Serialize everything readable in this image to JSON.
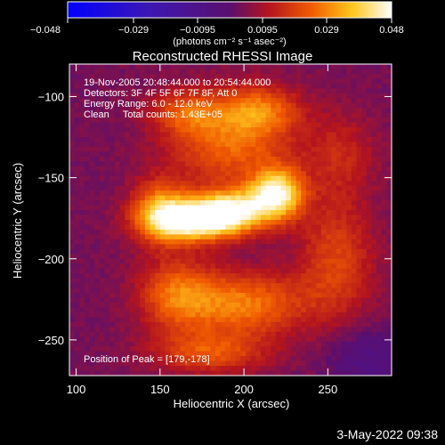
{
  "chart_data": {
    "type": "heatmap",
    "title": "Reconstructed RHESSI Image",
    "xlabel": "Heliocentric X (arcsec)",
    "ylabel": "Heliocentric Y (arcsec)",
    "xlim": [
      96,
      288
    ],
    "ylim": [
      -272,
      -80
    ],
    "xticks": [
      100,
      150,
      200,
      250
    ],
    "yticks": [
      -100,
      -150,
      -200,
      -250
    ],
    "colorbar": {
      "label": "(photons cm⁻² s⁻¹ asec⁻²)",
      "min": -0.048,
      "max": 0.048,
      "ticks": [
        "−0.048",
        "−0.029",
        "−0.0095",
        "0.0095",
        "0.029",
        "0.048"
      ]
    },
    "annotations": [
      "19-Nov-2005 20:48:44.000 to 20:54:44.000",
      "Detectors: 3F 4F 5F 6F 7F 8F, Att 0",
      "Energy Range: 6.0 - 12.0 keV",
      "Clean     Total counts: 1.43E+05",
      "Position of Peak = [179,-178]"
    ],
    "peak": {
      "x": 179,
      "y": -178
    },
    "sources": [
      {
        "x": 172,
        "y": -176,
        "sx": 20,
        "sy": 9,
        "amp": 0.048
      },
      {
        "x": 220,
        "y": -160,
        "sx": 11,
        "sy": 11,
        "amp": 0.04
      },
      {
        "x": 195,
        "y": -169,
        "sx": 15,
        "sy": 9,
        "amp": 0.028
      },
      {
        "x": 150,
        "y": -170,
        "sx": 12,
        "sy": 14,
        "amp": 0.022
      },
      {
        "x": 192,
        "y": -127,
        "sx": 26,
        "sy": 20,
        "amp": 0.022
      },
      {
        "x": 165,
        "y": -110,
        "sx": 14,
        "sy": 9,
        "amp": 0.015
      },
      {
        "x": 210,
        "y": -108,
        "sx": 16,
        "sy": 10,
        "amp": 0.017
      },
      {
        "x": 160,
        "y": -222,
        "sx": 16,
        "sy": 16,
        "amp": 0.02
      },
      {
        "x": 200,
        "y": -228,
        "sx": 26,
        "sy": 14,
        "amp": 0.024
      },
      {
        "x": 180,
        "y": -258,
        "sx": 24,
        "sy": 9,
        "amp": 0.018
      },
      {
        "x": 255,
        "y": -200,
        "sx": 16,
        "sy": 28,
        "amp": 0.016
      },
      {
        "x": 258,
        "y": -135,
        "sx": 15,
        "sy": 18,
        "amp": 0.01
      }
    ],
    "baseline": 0.0035
  },
  "timestamp": "3-May-2022 09:38"
}
